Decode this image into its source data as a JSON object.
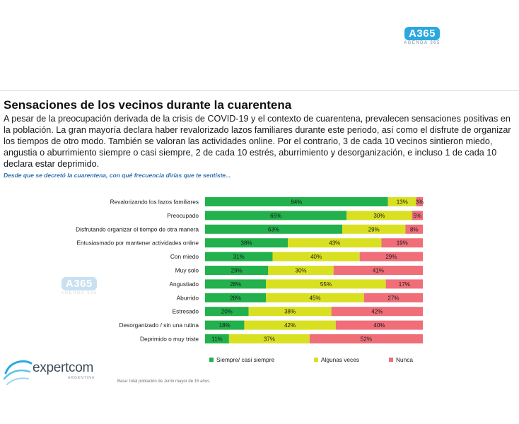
{
  "brand": {
    "badge": "A365",
    "subtitle": "AGENDA 365"
  },
  "slide": {
    "title": "Sensaciones de los vecinos durante la cuarentena",
    "body": "A pesar de la preocupación derivada de la crisis de COVID-19 y el contexto de cuarentena, prevalecen sensaciones positivas en la población. La gran mayoría declara haber revalorizado lazos familiares durante este periodo, así como el disfrute de organizar los tiempos de otro modo. También se valoran las actividades online. Por el contrario, 3 de cada 10 vecinos sintieron miedo, angustia o aburrimiento siempre o casi siempre, 2 de cada 10 estrés, aburrimiento y desorganización, e incluso 1 de cada 10 declara estar deprimido.",
    "question": "Desde que se decretó la cuarentena, con qué frecuencia dirías que te sentiste...",
    "base_note": "Base: total población de Junín mayor de 15 años."
  },
  "company": {
    "name": "expertcom",
    "sub": "ARGENTINA"
  },
  "colors": {
    "green": "#22b14c",
    "yellow": "#d9e021",
    "red": "#ef6e78",
    "accent_blue": "#2aa8e0"
  },
  "chart_data": {
    "type": "bar",
    "orientation": "horizontal",
    "stacked": true,
    "xlim": [
      0,
      100
    ],
    "title": "",
    "xlabel": "",
    "ylabel": "",
    "legend_position": "bottom",
    "categories": [
      "Revalorizando los lazos familiares",
      "Preocupado",
      "Disfrutando organizar el tiempo de otra manera",
      "Entusiasmado por mantener actividades online",
      "Con miedo",
      "Muy solo",
      "Angustiado",
      "Aburrido",
      "Estresado",
      "Desorganizado / sin una rutina",
      "Deprimido o muy triste"
    ],
    "series": [
      {
        "name": "Siempre/ casi siempre",
        "color": "#22b14c",
        "values": [
          84,
          65,
          63,
          38,
          31,
          29,
          28,
          28,
          20,
          18,
          11
        ]
      },
      {
        "name": "Algunas veces",
        "color": "#d9e021",
        "values": [
          13,
          30,
          29,
          43,
          40,
          30,
          55,
          45,
          38,
          42,
          37
        ]
      },
      {
        "name": "Nunca",
        "color": "#ef6e78",
        "values": [
          3,
          5,
          8,
          19,
          29,
          41,
          17,
          27,
          42,
          40,
          52
        ]
      }
    ],
    "value_suffix": "%"
  }
}
